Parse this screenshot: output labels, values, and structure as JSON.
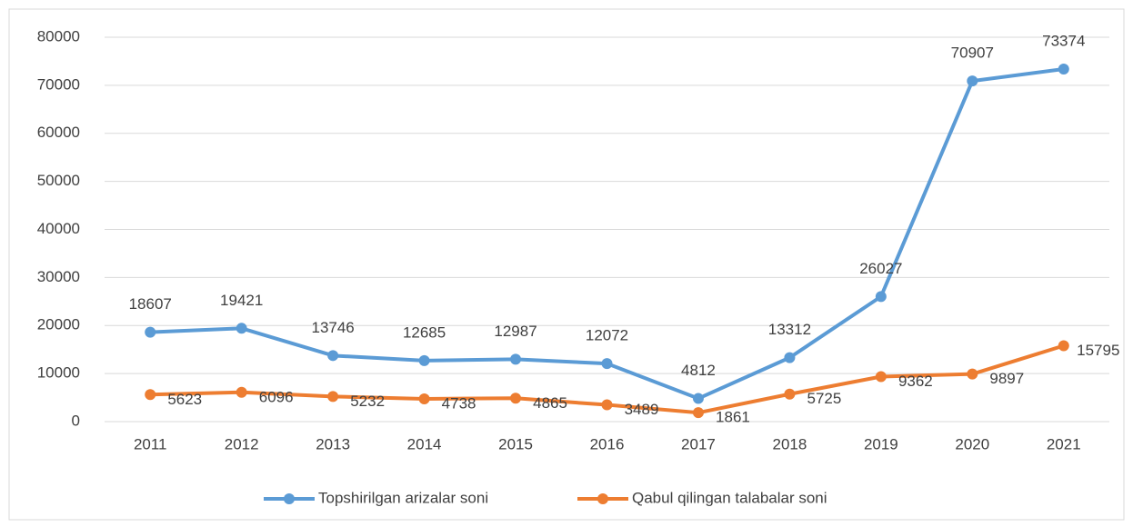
{
  "chart_data": {
    "type": "line",
    "categories": [
      "2011",
      "2012",
      "2013",
      "2014",
      "2015",
      "2016",
      "2017",
      "2018",
      "2019",
      "2020",
      "2021"
    ],
    "series": [
      {
        "name": "Topshirilgan arizalar soni",
        "color": "#5b9bd5",
        "values": [
          18607,
          19421,
          13746,
          12685,
          12987,
          12072,
          4812,
          13312,
          26027,
          70907,
          73374
        ]
      },
      {
        "name": "Qabul qilingan talabalar soni",
        "color": "#ed7d31",
        "values": [
          5623,
          6096,
          5232,
          4738,
          4865,
          3489,
          1861,
          5725,
          9362,
          9897,
          15795
        ]
      }
    ],
    "ylim": [
      0,
      80000
    ],
    "yticks": [
      0,
      10000,
      20000,
      30000,
      40000,
      50000,
      60000,
      70000,
      80000
    ],
    "grid": true,
    "legend": "bottom"
  }
}
